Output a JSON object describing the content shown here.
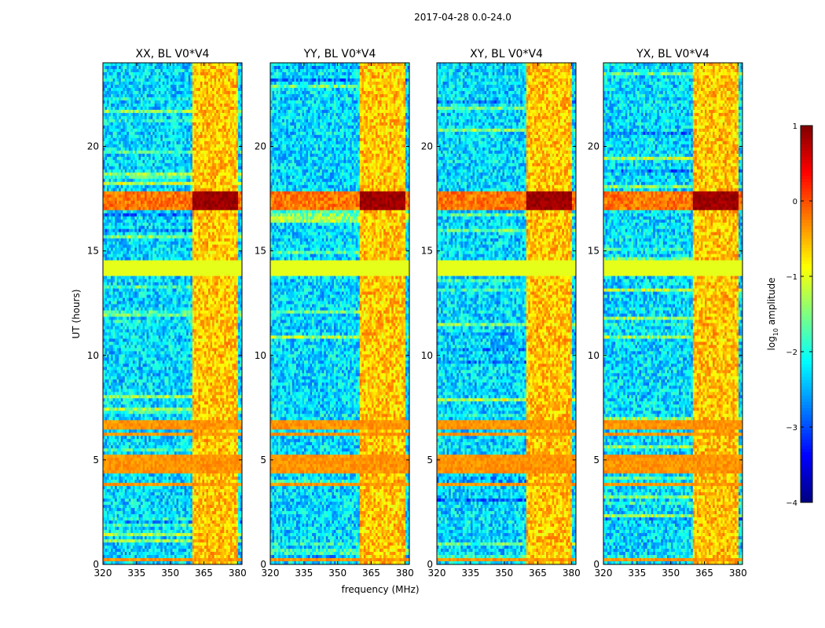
{
  "chart_data": {
    "type": "heatmap",
    "title": "2017-04-28 0.0-24.0",
    "xlabel": "frequency (MHz)",
    "ylabel": "UT (hours)",
    "xlim": [
      320,
      382
    ],
    "ylim": [
      0,
      24
    ],
    "xticks": [
      320,
      335,
      350,
      365,
      380
    ],
    "yticks": [
      0,
      5,
      10,
      15,
      20
    ],
    "colormap": "jet",
    "colorbar": {
      "label_prefix": "log",
      "label_sub": "10",
      "label_suffix": " amplitude",
      "min": -4,
      "max": 1,
      "ticks": [
        -4,
        -3,
        -2,
        -1,
        0,
        1
      ],
      "tick_labels": [
        "−4",
        "−3",
        "−2",
        "−1",
        "0",
        "1"
      ]
    },
    "panels": [
      {
        "name": "XX",
        "title": "XX, BL V0*V4"
      },
      {
        "name": "YY",
        "title": "YY, BL V0*V4"
      },
      {
        "name": "XY",
        "title": "XY, BL V0*V4"
      },
      {
        "name": "YX",
        "title": "YX, BL V0*V4"
      }
    ],
    "features": {
      "background_level": -2.3,
      "rfi_band_mhz": [
        359.5,
        380
      ],
      "rfi_band_level": -0.6,
      "flagged_rows_hours": [
        [
          13.75,
          14.5
        ]
      ],
      "flagged_level": -1.0,
      "strong_event_hours": [
        16.9,
        17.8
      ],
      "strong_event_level": 1.0,
      "strong_rows_hours": [
        [
          4.4,
          4.9
        ],
        [
          5.0,
          5.3
        ],
        [
          6.1,
          6.3
        ],
        [
          6.5,
          6.9
        ],
        [
          3.75,
          3.9
        ],
        [
          0.1,
          0.3
        ]
      ],
      "strong_rows_level": -0.35
    }
  }
}
